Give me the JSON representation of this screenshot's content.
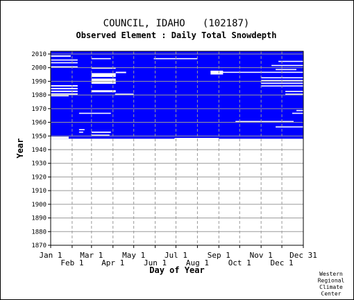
{
  "chart_data": {
    "type": "heatmap",
    "title": "COUNCIL, IDAHO   (102187)",
    "subtitle": "Observed Element : Daily Total Snowdepth",
    "xlabel": "Day of Year",
    "ylabel": "Year",
    "ylim": [
      1870,
      2012
    ],
    "xlim_days": [
      1,
      366
    ],
    "grid": true,
    "yticks": [
      1870,
      1880,
      1890,
      1900,
      1910,
      1920,
      1930,
      1940,
      1950,
      1960,
      1970,
      1980,
      1990,
      2000,
      2010
    ],
    "xticks_upper": [
      {
        "label": "Jan 1",
        "day": 1
      },
      {
        "label": "Mar 1",
        "day": 60
      },
      {
        "label": "May 1",
        "day": 121
      },
      {
        "label": "Jul 1",
        "day": 182
      },
      {
        "label": "Sep 1",
        "day": 244
      },
      {
        "label": "Nov 1",
        "day": 305
      },
      {
        "label": "Dec 31",
        "day": 366
      }
    ],
    "xticks_lower": [
      {
        "label": "Feb 1",
        "day": 32
      },
      {
        "label": "Apr 1",
        "day": 91
      },
      {
        "label": "Jun 1",
        "day": 152
      },
      {
        "label": "Aug 1",
        "day": 213
      },
      {
        "label": "Oct 1",
        "day": 274
      },
      {
        "label": "Dec 1",
        "day": 335
      }
    ],
    "observed_color": "#0000ff",
    "record_start_year": 1948,
    "record_end_year": 2011,
    "missing_bands": [
      {
        "y0": 1948.0,
        "y1": 1949.5,
        "d0": 1,
        "d1": 27
      },
      {
        "y0": 1947.5,
        "y1": 1948.6,
        "d0": 180,
        "d1": 244
      },
      {
        "y0": 1952.3,
        "y1": 1953.2,
        "d0": 60,
        "d1": 88
      },
      {
        "y0": 1950.2,
        "y1": 1951.0,
        "d0": 60,
        "d1": 86
      },
      {
        "y0": 1954.2,
        "y1": 1955.0,
        "d0": 42,
        "d1": 50
      },
      {
        "y0": 1952.4,
        "y1": 1953.2,
        "d0": 42,
        "d1": 48
      },
      {
        "y0": 1966.2,
        "y1": 1967.0,
        "d0": 42,
        "d1": 88
      },
      {
        "y0": 1960.3,
        "y1": 1961.0,
        "d0": 268,
        "d1": 352
      },
      {
        "y0": 1956.2,
        "y1": 1957.0,
        "d0": 326,
        "d1": 366
      },
      {
        "y0": 1966.2,
        "y1": 1967.0,
        "d0": 350,
        "d1": 366
      },
      {
        "y0": 1980.2,
        "y1": 1981.0,
        "d0": 94,
        "d1": 121
      },
      {
        "y0": 1979.0,
        "y1": 1980.0,
        "d0": 1,
        "d1": 27
      },
      {
        "y0": 1980.2,
        "y1": 1981.2,
        "d0": 1,
        "d1": 40
      },
      {
        "y0": 1982.2,
        "y1": 1983.2,
        "d0": 1,
        "d1": 40
      },
      {
        "y0": 1984.2,
        "y1": 1985.2,
        "d0": 1,
        "d1": 40
      },
      {
        "y0": 1986.2,
        "y1": 1987.2,
        "d0": 1,
        "d1": 40
      },
      {
        "y0": 1982.0,
        "y1": 1983.5,
        "d0": 60,
        "d1": 95
      },
      {
        "y0": 1988.2,
        "y1": 1992.0,
        "d0": 60,
        "d1": 95
      },
      {
        "y0": 1993.2,
        "y1": 1996.0,
        "d0": 60,
        "d1": 95
      },
      {
        "y0": 1996.0,
        "y1": 1997.0,
        "d0": 95,
        "d1": 110
      },
      {
        "y0": 1996.2,
        "y1": 1997.0,
        "d0": 244,
        "d1": 305
      },
      {
        "y0": 1995.0,
        "y1": 1997.8,
        "d0": 232,
        "d1": 250
      },
      {
        "y0": 1999.2,
        "y1": 2000.2,
        "d0": 60,
        "d1": 95
      },
      {
        "y0": 2006.2,
        "y1": 2007.0,
        "d0": 60,
        "d1": 88
      },
      {
        "y0": 2006.2,
        "y1": 2007.0,
        "d0": 150,
        "d1": 213
      },
      {
        "y0": 2003.2,
        "y1": 2004.0,
        "d0": 1,
        "d1": 40
      },
      {
        "y0": 2005.2,
        "y1": 2006.0,
        "d0": 1,
        "d1": 40
      },
      {
        "y0": 2000.0,
        "y1": 2001.0,
        "d0": 1,
        "d1": 40
      },
      {
        "y0": 2008.0,
        "y1": 2009.0,
        "d0": 1,
        "d1": 30
      },
      {
        "y0": 1996.2,
        "y1": 1997.0,
        "d0": 305,
        "d1": 366
      },
      {
        "y0": 1986.2,
        "y1": 1987.0,
        "d0": 305,
        "d1": 366
      },
      {
        "y0": 1988.2,
        "y1": 1989.0,
        "d0": 305,
        "d1": 366
      },
      {
        "y0": 1990.2,
        "y1": 1991.0,
        "d0": 305,
        "d1": 366
      },
      {
        "y0": 1992.2,
        "y1": 1993.0,
        "d0": 305,
        "d1": 366
      },
      {
        "y0": 1982.2,
        "y1": 1983.0,
        "d0": 340,
        "d1": 366
      },
      {
        "y0": 1980.2,
        "y1": 1981.0,
        "d0": 340,
        "d1": 366
      },
      {
        "y0": 1998.2,
        "y1": 1999.0,
        "d0": 326,
        "d1": 356
      },
      {
        "y0": 2001.2,
        "y1": 2002.0,
        "d0": 320,
        "d1": 366
      },
      {
        "y0": 2004.2,
        "y1": 2005.0,
        "d0": 330,
        "d1": 366
      },
      {
        "y0": 1968.2,
        "y1": 1969.0,
        "d0": 356,
        "d1": 366
      }
    ],
    "credit_lines": [
      "Western",
      "Regional",
      "Climate",
      "Center"
    ]
  }
}
